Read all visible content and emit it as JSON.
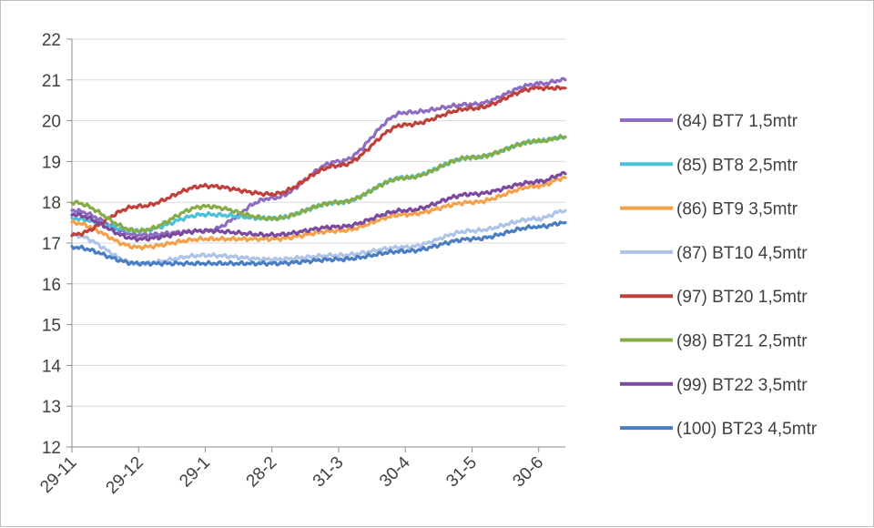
{
  "chart_data": {
    "type": "line",
    "title": "",
    "xlabel": "",
    "ylabel": "",
    "ylim": [
      12,
      22
    ],
    "y_ticks": [
      12,
      13,
      14,
      15,
      16,
      17,
      18,
      19,
      20,
      21,
      22
    ],
    "x_tick_labels": [
      "29-11",
      "29-12",
      "29-1",
      "28-2",
      "31-3",
      "30-4",
      "31-5",
      "30-6"
    ],
    "x": [
      0,
      1,
      2,
      3,
      4,
      5,
      6,
      7,
      7.4
    ],
    "grid": "horizontal",
    "legend_position": "right",
    "series": [
      {
        "name": "(84) BT7 1,5mtr",
        "color": "#8e6cc0",
        "values": [
          17.8,
          17.2,
          17.3,
          18.1,
          19.0,
          20.2,
          20.4,
          20.9,
          21.0
        ]
      },
      {
        "name": "(85) BT8 2,5mtr",
        "color": "#4bc0d8",
        "values": [
          17.6,
          17.3,
          17.7,
          17.6,
          18.0,
          18.6,
          19.1,
          19.5,
          19.6
        ]
      },
      {
        "name": "(86) BT9 3,5mtr",
        "color": "#f5a14a",
        "values": [
          17.5,
          16.9,
          17.1,
          17.1,
          17.3,
          17.7,
          18.0,
          18.4,
          18.6
        ]
      },
      {
        "name": "(87) BT10 4,5mtr",
        "color": "#aec4e6",
        "values": [
          17.2,
          16.5,
          16.7,
          16.6,
          16.7,
          16.9,
          17.3,
          17.6,
          17.8
        ]
      },
      {
        "name": "(97) BT20 1,5mtr",
        "color": "#c0413b",
        "values": [
          17.2,
          17.9,
          18.4,
          18.2,
          18.9,
          19.9,
          20.3,
          20.8,
          20.8
        ]
      },
      {
        "name": "(98) BT21 2,5mtr",
        "color": "#86ad45",
        "values": [
          18.0,
          17.3,
          17.9,
          17.6,
          18.0,
          18.6,
          19.1,
          19.5,
          19.6
        ]
      },
      {
        "name": "(99) BT22 3,5mtr",
        "color": "#7b4aa0",
        "values": [
          17.7,
          17.1,
          17.3,
          17.2,
          17.4,
          17.8,
          18.2,
          18.5,
          18.7
        ]
      },
      {
        "name": "(100) BT23 4,5mtr",
        "color": "#4a7ec0",
        "values": [
          16.9,
          16.5,
          16.5,
          16.5,
          16.6,
          16.8,
          17.1,
          17.4,
          17.5
        ]
      }
    ]
  }
}
